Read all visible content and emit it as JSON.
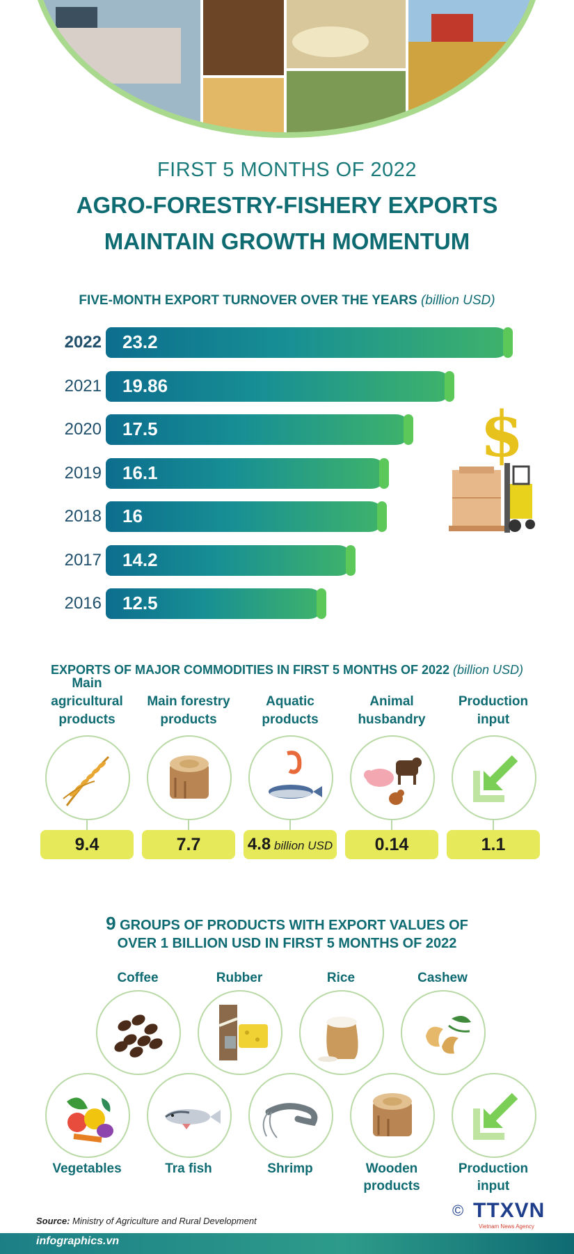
{
  "header": {
    "subtitle": "FIRST 5 MONTHS OF 2022",
    "title_line1": "AGRO-FORESTRY-FISHERY EXPORTS",
    "title_line2": "MAINTAIN GROWTH MOMENTUM"
  },
  "colors": {
    "teal": "#0f6b72",
    "bar_start": "#0d6e8e",
    "bar_end": "#3fb36a",
    "pill": "#e6ea5a",
    "ring": "#b9d9a6"
  },
  "chart_data": {
    "type": "bar",
    "orientation": "horizontal",
    "title": "FIVE-MONTH EXPORT TURNOVER OVER THE YEARS",
    "unit": "(billion USD)",
    "categories": [
      "2022",
      "2021",
      "2020",
      "2019",
      "2018",
      "2017",
      "2016"
    ],
    "values": [
      23.2,
      19.86,
      17.5,
      16.1,
      16,
      14.2,
      12.5
    ],
    "value_labels": [
      "23.2",
      "19.86",
      "17.5",
      "16.1",
      "16",
      "14.2",
      "12.5"
    ],
    "highlight": "2022",
    "xlim": [
      0,
      23.2
    ]
  },
  "commodities": {
    "title": "EXPORTS OF MAJOR COMMODITIES IN FIRST 5 MONTHS OF 2022",
    "unit": "(billion USD)",
    "items": [
      {
        "label_lines": [
          "Main",
          "agricultural",
          "products"
        ],
        "value": "9.4",
        "icon": "rice-stalk-icon"
      },
      {
        "label_lines": [
          "Main forestry",
          "products"
        ],
        "value": "7.7",
        "icon": "wood-log-icon"
      },
      {
        "label_lines": [
          "Aquatic",
          "products"
        ],
        "value": "4.8",
        "unit": "billion USD",
        "icon": "fish-shrimp-icon"
      },
      {
        "label_lines": [
          "Animal",
          "husbandry"
        ],
        "value": "0.14",
        "icon": "livestock-icon"
      },
      {
        "label_lines": [
          "Production",
          "input"
        ],
        "value": "1.1",
        "icon": "import-arrow-icon"
      }
    ]
  },
  "groups": {
    "title_number": "9",
    "title_line1": " GROUPS OF PRODUCTS WITH EXPORT VALUES OF",
    "title_line2": "OVER 1 BILLION USD IN FIRST 5 MONTHS OF 2022",
    "row1": [
      {
        "label": "Coffee",
        "icon": "coffee-beans-icon"
      },
      {
        "label": "Rubber",
        "icon": "rubber-tree-icon"
      },
      {
        "label": "Rice",
        "icon": "rice-sack-icon"
      },
      {
        "label": "Cashew",
        "icon": "cashew-icon"
      }
    ],
    "row2": [
      {
        "label_lines": [
          "Vegetables"
        ],
        "icon": "vegetables-icon"
      },
      {
        "label_lines": [
          "Tra fish"
        ],
        "icon": "tra-fish-icon"
      },
      {
        "label_lines": [
          "Shrimp"
        ],
        "icon": "shrimp-icon"
      },
      {
        "label_lines": [
          "Wooden",
          "products"
        ],
        "icon": "wood-log-icon"
      },
      {
        "label_lines": [
          "Production",
          "input"
        ],
        "icon": "import-arrow-icon"
      }
    ]
  },
  "footer": {
    "source_label": "Source:",
    "source_text": " Ministry of Agriculture and Rural Development",
    "site": "infographics.vn",
    "copyright": "©",
    "logo": "TTXVN",
    "logo_sub": "Vietnam News Agency"
  }
}
